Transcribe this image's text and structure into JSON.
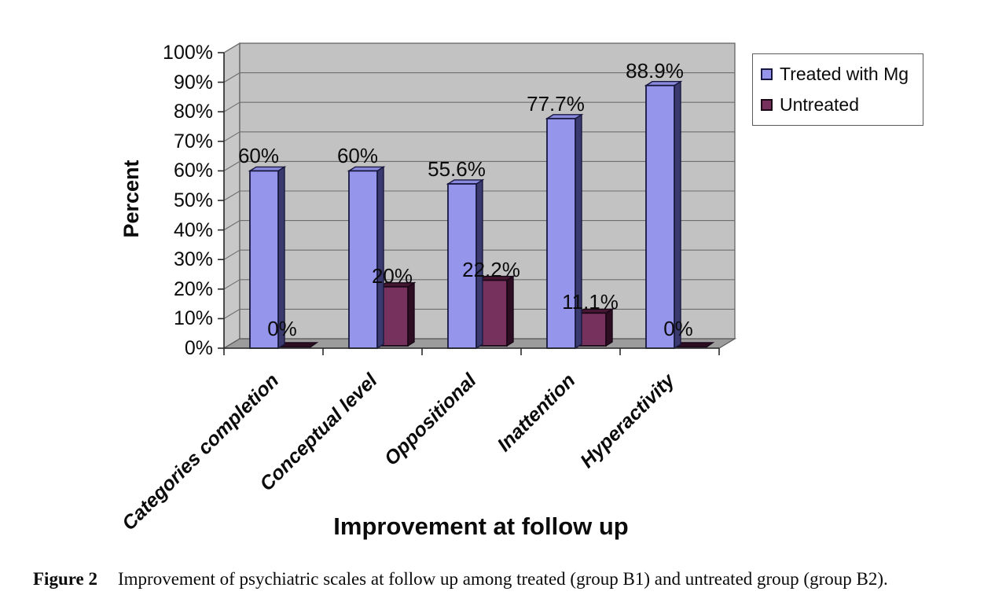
{
  "figure": {
    "caption_label": "Figure 2",
    "caption_text": "Improvement of psychiatric scales at follow up among treated (group B1) and untreated group (group B2)."
  },
  "chart_data": {
    "type": "bar",
    "style": "3d-clustered-column",
    "title": "",
    "xlabel": "Improvement at follow up",
    "ylabel": "Percent",
    "categories": [
      "Categories completion",
      "Conceptual level",
      "Oppositional",
      "Inattention",
      "Hyperactivity"
    ],
    "series": [
      {
        "name": "Treated with Mg",
        "values": [
          60,
          60,
          55.6,
          77.7,
          88.9
        ],
        "data_labels": [
          "60%",
          "60%",
          "55.6%",
          "77.7%",
          "88.9%"
        ],
        "color": "#9595EC",
        "color_top": "#8A8ADF",
        "color_side": "#3A3A6E",
        "color_border": "#18183F"
      },
      {
        "name": "Untreated",
        "values": [
          0,
          20,
          22.2,
          11.1,
          0
        ],
        "data_labels": [
          "0%",
          "20%",
          "22.2%",
          "11.1%",
          "0%"
        ],
        "color": "#76325C",
        "color_top": "#451732",
        "color_side": "#2C0D22",
        "color_border": "#190716"
      }
    ],
    "ylim": [
      0,
      100
    ],
    "y_ticks": [
      "0%",
      "10%",
      "20%",
      "30%",
      "40%",
      "50%",
      "60%",
      "70%",
      "80%",
      "90%",
      "100%"
    ],
    "grid": true,
    "legend_position": "top-right",
    "plot": {
      "back_wall": "#C2C2C2",
      "side_wall": "#C8C8C8",
      "floor": "#9C9C9C",
      "gridline": "#6E6E6E",
      "wall_border": "#5A5A5A",
      "axis": "#2B2B2B"
    }
  }
}
